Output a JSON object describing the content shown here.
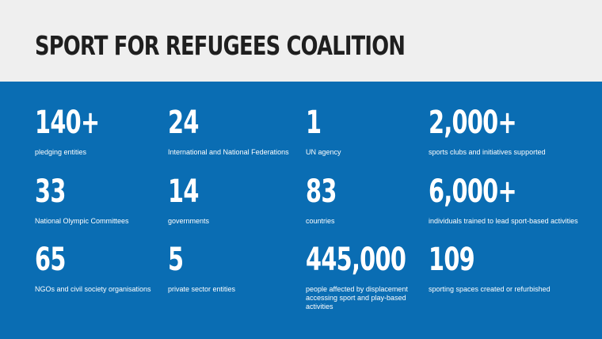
{
  "header": {
    "title": "SPORT FOR REFUGEES COALITION"
  },
  "stats": [
    {
      "value": "140+",
      "label": "pledging entities"
    },
    {
      "value": "24",
      "label": "International and National Federations"
    },
    {
      "value": "1",
      "label": "UN agency"
    },
    {
      "value": "2,000+",
      "label": "sports clubs and initiatives supported"
    },
    {
      "value": "33",
      "label": "National Olympic Committees"
    },
    {
      "value": "14",
      "label": "governments"
    },
    {
      "value": "83",
      "label": "countries"
    },
    {
      "value": "6,000+",
      "label": "individuals trained to lead sport-based activities"
    },
    {
      "value": "65",
      "label": "NGOs and civil society organisations"
    },
    {
      "value": "5",
      "label": "private sector entities"
    },
    {
      "value": "445,000",
      "label": "people affected by displacement accessing sport and play-based activities"
    },
    {
      "value": "109",
      "label": "sporting spaces created or refurbished"
    }
  ],
  "colors": {
    "header_bg": "#efefef",
    "panel_bg": "#0a6db3",
    "title_text": "#1f1f1f",
    "stat_text": "#ffffff"
  }
}
